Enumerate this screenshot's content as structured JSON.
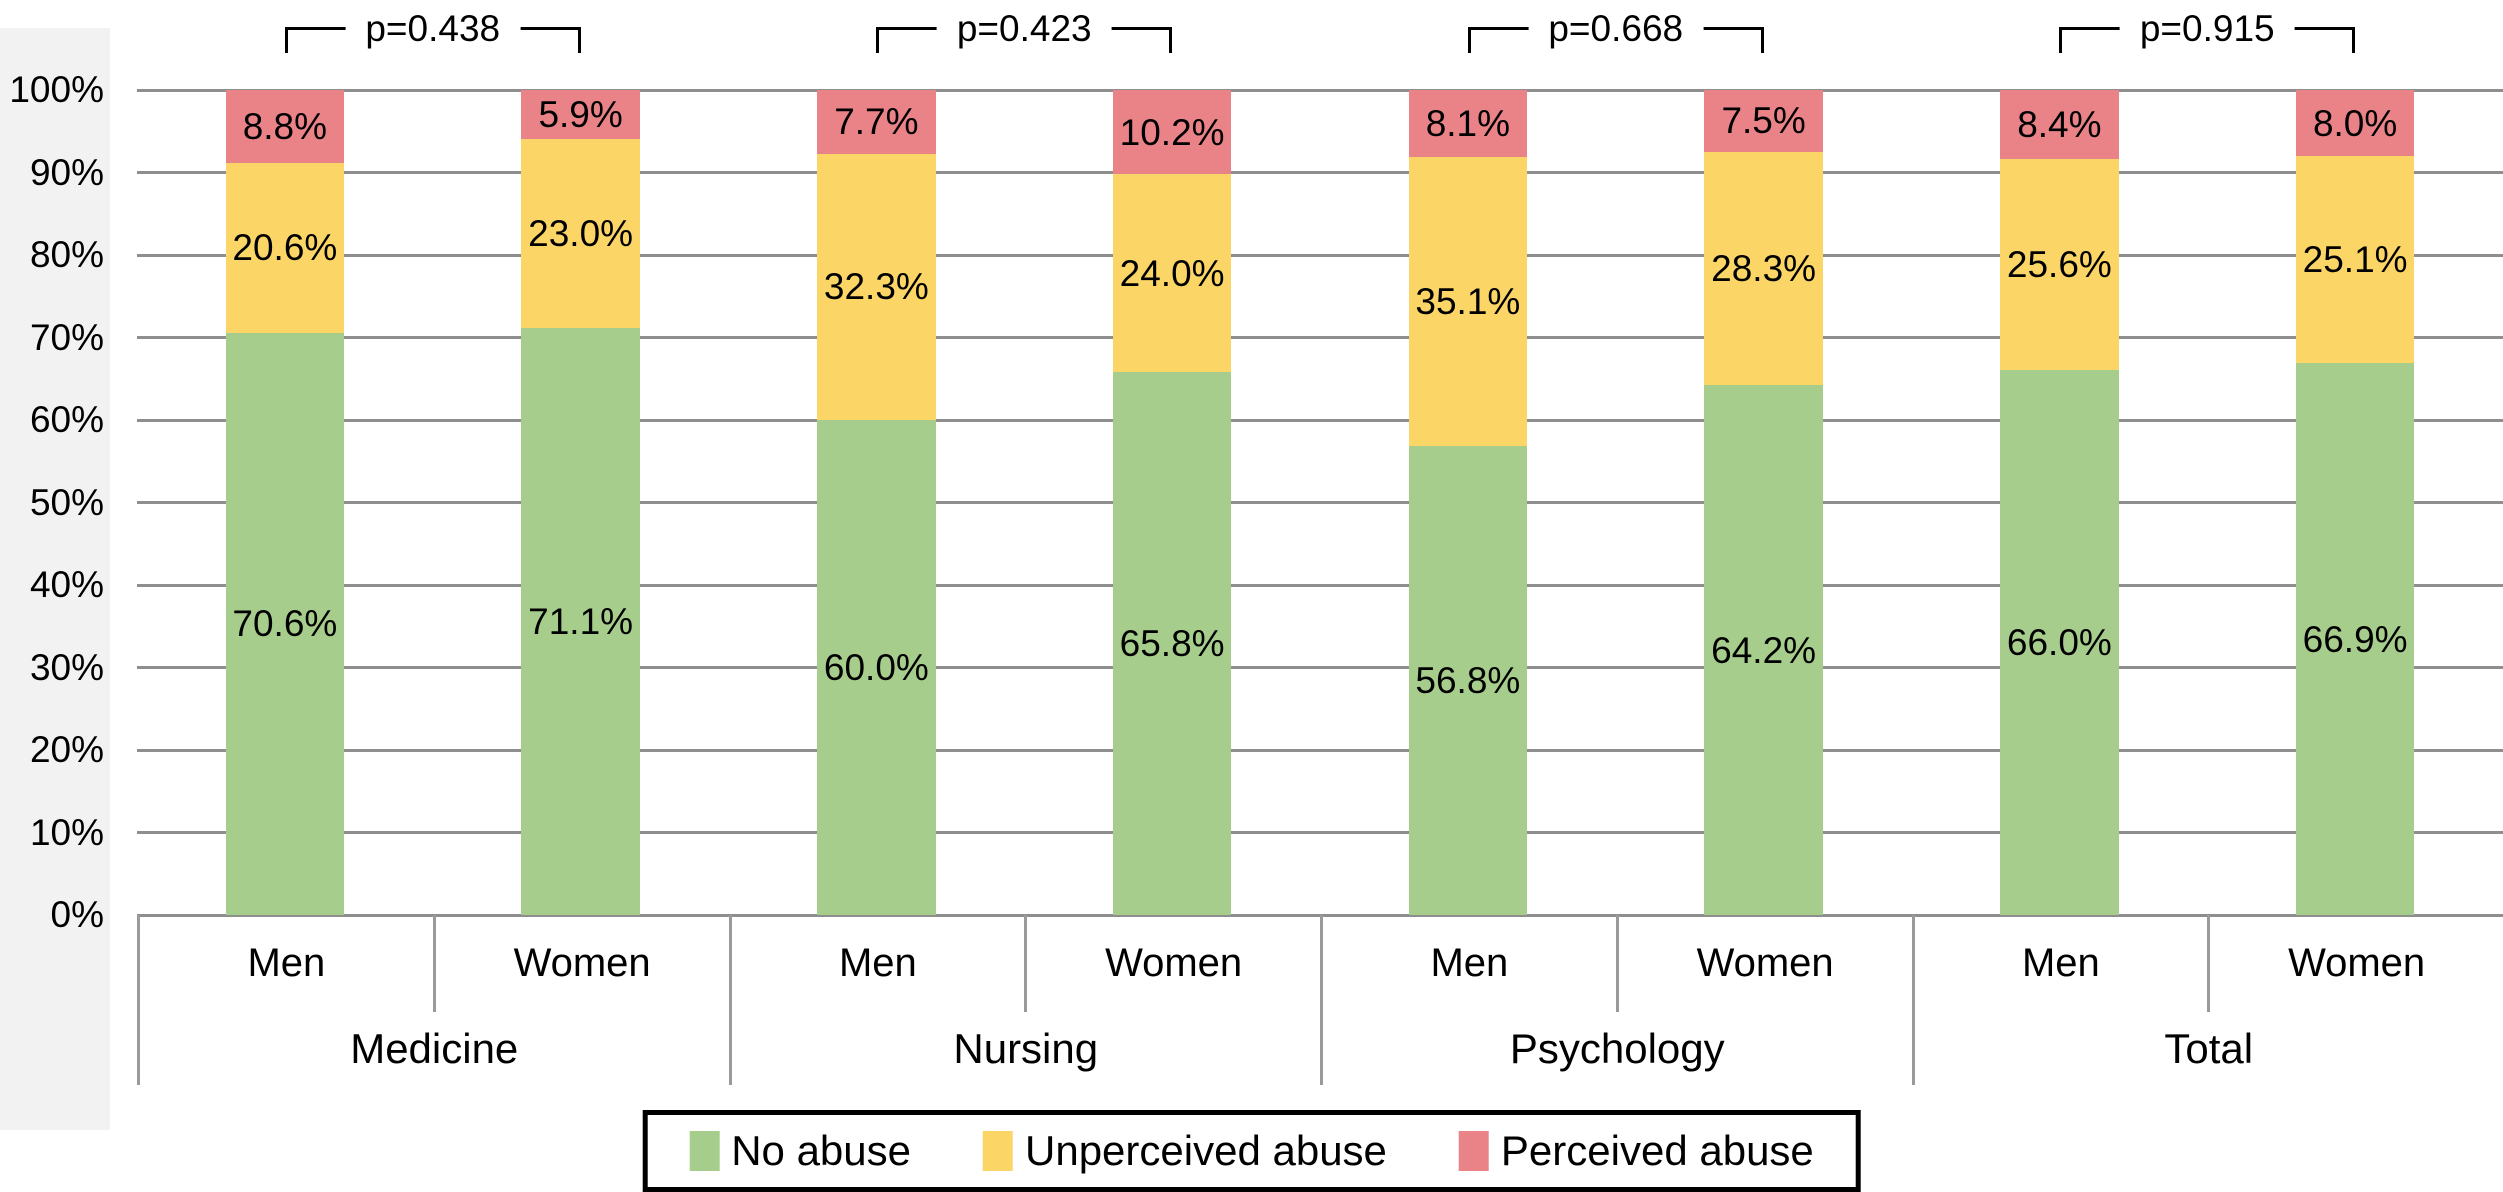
{
  "chart_data": {
    "type": "bar",
    "stacked": true,
    "unit": "%",
    "title": "",
    "groups": [
      "Medicine",
      "Nursing",
      "Psychology",
      "Total"
    ],
    "bar_categories": [
      "Men",
      "Women"
    ],
    "series": [
      {
        "name": "No abuse",
        "color": "#A6CD8C",
        "values": [
          70.6,
          71.1,
          60.0,
          65.8,
          56.8,
          64.2,
          66.0,
          66.9
        ]
      },
      {
        "name": "Unperceived abuse",
        "color": "#FBD565",
        "values": [
          20.6,
          23.0,
          32.3,
          24.0,
          35.1,
          28.3,
          25.6,
          25.1
        ]
      },
      {
        "name": "Perceived abuse",
        "color": "#E98388",
        "values": [
          8.8,
          5.9,
          7.7,
          10.2,
          8.1,
          7.5,
          8.4,
          8.0
        ]
      }
    ],
    "p_values": [
      "p=0.438",
      "p=0.423",
      "p=0.668",
      "p=0.915"
    ],
    "y_axis": {
      "min": 0,
      "max": 100,
      "step": 10,
      "tick_suffix": "%",
      "tick_labels": [
        "0%",
        "10%",
        "20%",
        "30%",
        "40%",
        "50%",
        "60%",
        "70%",
        "80%",
        "90%",
        "100%"
      ]
    },
    "legend": {
      "position": "bottom",
      "entries": [
        "No abuse",
        "Unperceived abuse",
        "Perceived abuse"
      ]
    },
    "gridlines": true,
    "gridline_color": "#8E8E8E",
    "bracket_color": "#000000"
  }
}
